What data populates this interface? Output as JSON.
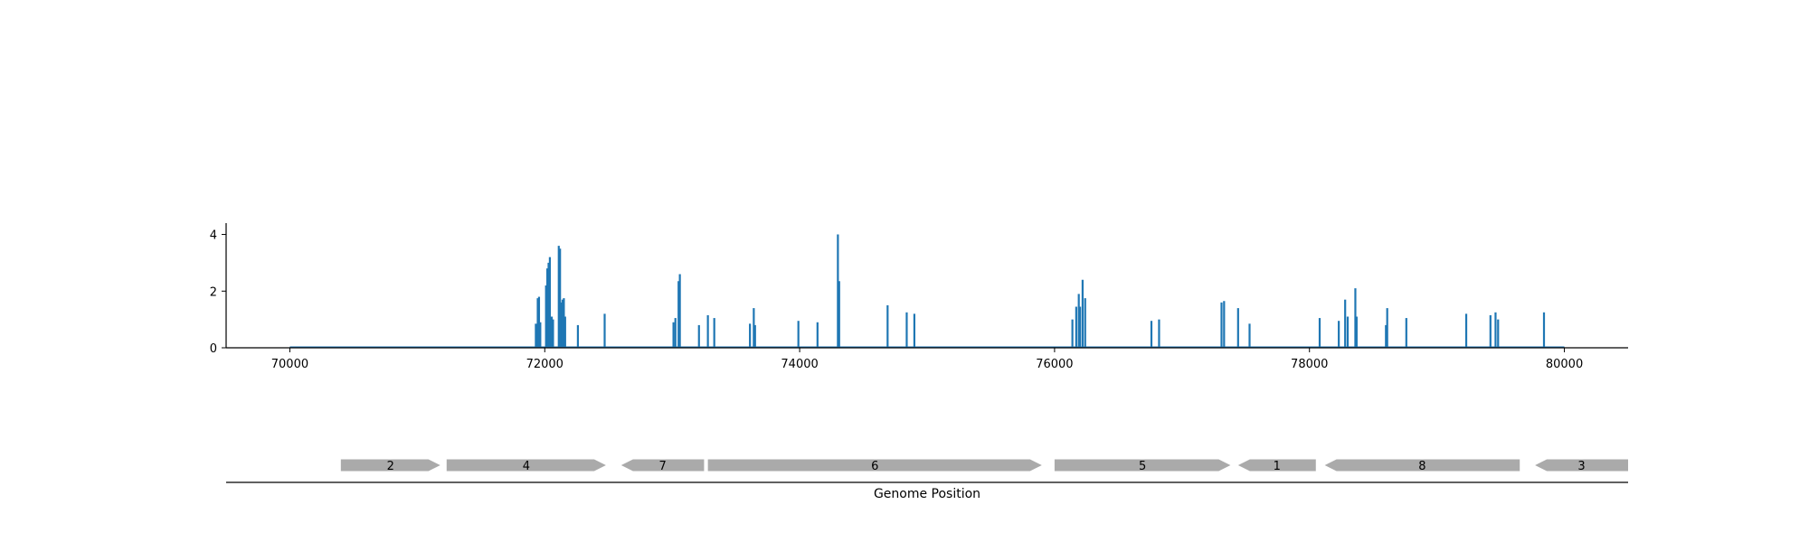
{
  "chart_data": {
    "type": "bar",
    "xlabel": "Genome Position",
    "ylabel": "",
    "xlim": [
      69500,
      80500
    ],
    "ylim": [
      0,
      4.4
    ],
    "x_ticks": [
      70000,
      72000,
      74000,
      76000,
      78000,
      80000
    ],
    "y_ticks": [
      0,
      2,
      4
    ],
    "grid": false,
    "series": [
      {
        "color": "#1f77b4",
        "x": [
          71930,
          71945,
          71955,
          71965,
          72010,
          72020,
          72030,
          72040,
          72055,
          72065,
          72110,
          72120,
          72130,
          72140,
          72150,
          72160,
          72260,
          72470,
          73010,
          73025,
          73050,
          73060,
          73210,
          73280,
          73330,
          73610,
          73640,
          73650,
          73990,
          74140,
          74300,
          74310,
          74690,
          74840,
          74900,
          76140,
          76170,
          76190,
          76200,
          76220,
          76240,
          76760,
          76820,
          77310,
          77330,
          77440,
          77530,
          78080,
          78230,
          78280,
          78300,
          78360,
          78370,
          78600,
          78610,
          78760,
          79230,
          79420,
          79460,
          79480,
          79840
        ],
        "values": [
          0.85,
          1.75,
          1.8,
          0.9,
          2.2,
          2.8,
          3.0,
          3.2,
          1.1,
          1.0,
          3.6,
          3.5,
          1.6,
          1.7,
          1.75,
          1.1,
          0.8,
          1.2,
          0.9,
          1.05,
          2.35,
          2.6,
          0.8,
          1.15,
          1.05,
          0.85,
          1.4,
          0.8,
          0.95,
          0.9,
          4.0,
          2.35,
          1.5,
          1.25,
          1.2,
          1.0,
          1.45,
          1.9,
          1.45,
          2.4,
          1.75,
          0.95,
          1.0,
          1.6,
          1.65,
          1.4,
          0.85,
          1.05,
          0.95,
          1.7,
          1.1,
          2.1,
          1.1,
          0.8,
          1.4,
          1.05,
          1.2,
          1.15,
          1.25,
          1.0,
          1.25
        ]
      }
    ],
    "genes": [
      {
        "label": "2",
        "start": 70400,
        "end": 71180,
        "strand": "+"
      },
      {
        "label": "4",
        "start": 71230,
        "end": 72480,
        "strand": "+"
      },
      {
        "label": "7",
        "start": 72600,
        "end": 73250,
        "strand": "-"
      },
      {
        "label": "6",
        "start": 73280,
        "end": 75900,
        "strand": "+"
      },
      {
        "label": "5",
        "start": 76000,
        "end": 77380,
        "strand": "+"
      },
      {
        "label": "1",
        "start": 77440,
        "end": 78050,
        "strand": "-"
      },
      {
        "label": "8",
        "start": 78120,
        "end": 79650,
        "strand": "-"
      },
      {
        "label": "3",
        "start": 79770,
        "end": 80500,
        "strand": "-"
      }
    ]
  }
}
